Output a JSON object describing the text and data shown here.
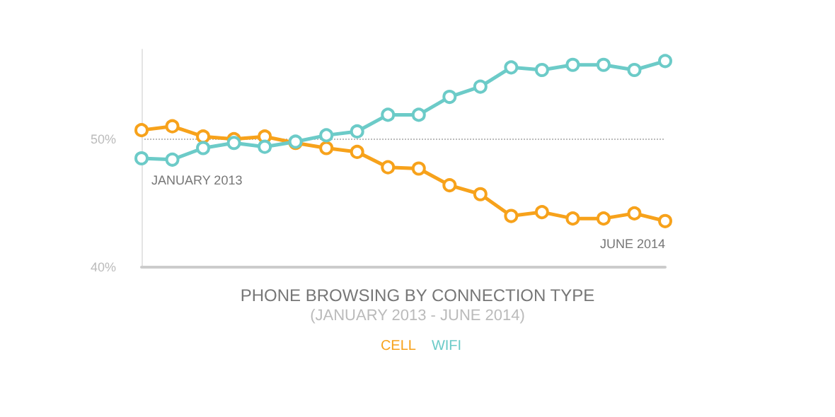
{
  "chart_data": {
    "type": "line",
    "title": "PHONE BROWSING BY CONNECTION TYPE",
    "subtitle": "(JANUARY 2013 - JUNE 2014)",
    "categories": [
      null,
      null,
      null,
      null,
      null,
      null,
      null,
      null,
      null,
      null,
      null,
      null,
      null,
      null,
      null,
      null,
      null,
      null
    ],
    "series": [
      {
        "name": "CELL",
        "color": "#f7a21b",
        "values": [
          50.7,
          51.0,
          50.2,
          50.0,
          50.2,
          49.7,
          49.3,
          49.0,
          47.8,
          47.7,
          46.4,
          45.7,
          44.0,
          44.3,
          43.8,
          43.8,
          44.2,
          43.6
        ]
      },
      {
        "name": "WIFI",
        "color": "#6ccbc8",
        "values": [
          48.5,
          48.4,
          49.3,
          49.7,
          49.4,
          49.8,
          50.3,
          50.6,
          51.9,
          51.9,
          53.3,
          54.1,
          55.6,
          55.4,
          55.8,
          55.8,
          55.4,
          56.1
        ]
      }
    ],
    "annotations": [
      "JANUARY 2013",
      "JUNE 2014"
    ],
    "ylim": [
      40,
      57
    ],
    "yticks": [
      {
        "value": 40,
        "label": "40%"
      },
      {
        "value": 50,
        "label": "50%"
      }
    ],
    "grid": "y",
    "legend": "bottom",
    "marker": "circle",
    "line_style": "solid"
  }
}
